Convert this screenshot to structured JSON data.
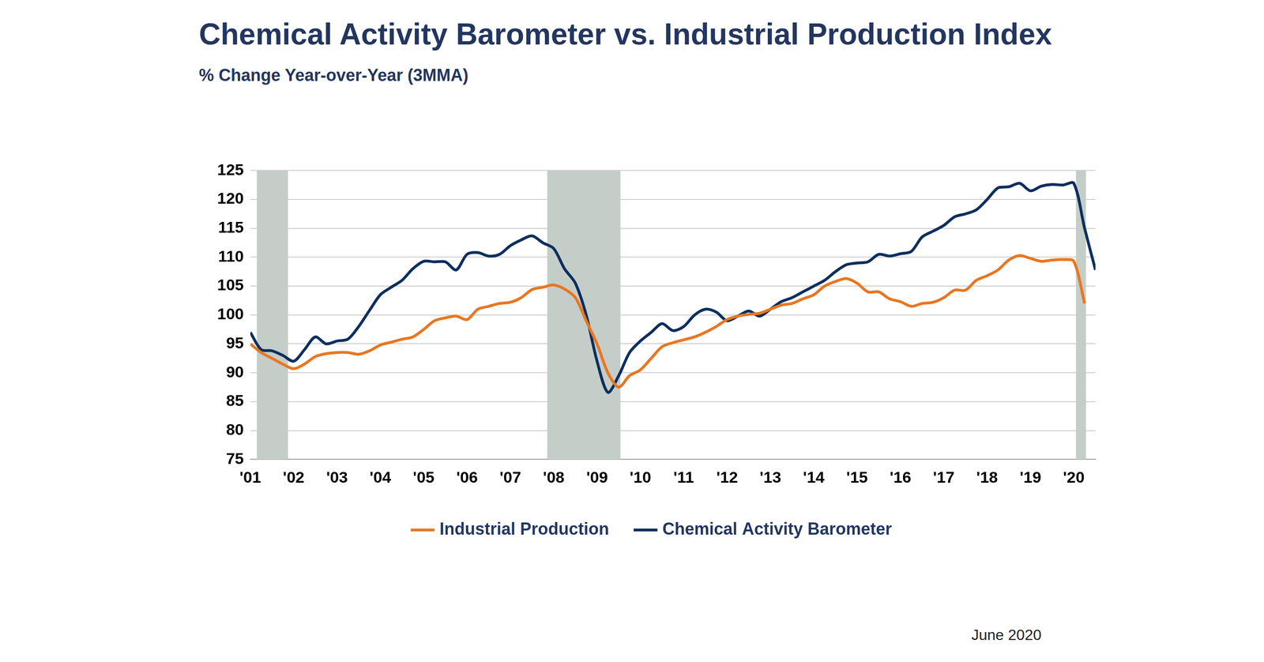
{
  "chart_data": {
    "type": "line",
    "title": "Chemical Activity Barometer vs. Industrial Production Index",
    "subtitle": "% Change Year-over-Year (3MMA)",
    "annotations": [
      "June 2020"
    ],
    "x": [
      2001,
      2001.25,
      2001.5,
      2001.75,
      2002,
      2002.25,
      2002.5,
      2002.75,
      2003,
      2003.25,
      2003.5,
      2003.75,
      2004,
      2004.25,
      2004.5,
      2004.75,
      2005,
      2005.25,
      2005.5,
      2005.75,
      2006,
      2006.25,
      2006.5,
      2006.75,
      2007,
      2007.25,
      2007.5,
      2007.75,
      2008,
      2008.25,
      2008.5,
      2008.75,
      2009,
      2009.25,
      2009.5,
      2009.75,
      2010,
      2010.25,
      2010.5,
      2010.75,
      2011,
      2011.25,
      2011.5,
      2011.75,
      2012,
      2012.25,
      2012.5,
      2012.75,
      2013,
      2013.25,
      2013.5,
      2013.75,
      2014,
      2014.25,
      2014.5,
      2014.75,
      2015,
      2015.25,
      2015.5,
      2015.75,
      2016,
      2016.25,
      2016.5,
      2016.75,
      2017,
      2017.25,
      2017.5,
      2017.75,
      2018,
      2018.25,
      2018.5,
      2018.75,
      2019,
      2019.25,
      2019.5,
      2019.75,
      2020,
      2020.25,
      2020.5
    ],
    "series": [
      {
        "name": "Industrial Production",
        "color": "#e87722",
        "values": [
          95,
          93.5,
          92.5,
          91.5,
          90.7,
          91.5,
          92.8,
          93.3,
          93.5,
          93.5,
          93.2,
          93.8,
          94.8,
          95.3,
          95.8,
          96.2,
          97.5,
          99,
          99.5,
          99.8,
          99.2,
          101,
          101.5,
          102,
          102.2,
          103,
          104.4,
          104.8,
          105.2,
          104.5,
          103,
          99,
          95,
          90,
          87.5,
          89.5,
          90.5,
          92.5,
          94.5,
          95.2,
          95.7,
          96.2,
          97,
          98,
          99.2,
          99.8,
          100.1,
          100.3,
          101,
          101.7,
          102,
          102.8,
          103.5,
          105,
          105.8,
          106.3,
          105.5,
          104,
          104,
          102.8,
          102.3,
          101.5,
          102,
          102.2,
          103,
          104.3,
          104.3,
          106,
          106.8,
          107.8,
          109.5,
          110.3,
          109.8,
          109.3,
          109.5,
          109.6,
          109.3,
          102,
          null
        ]
      },
      {
        "name": "Chemical Activity Barometer",
        "color": "#0d2f5e",
        "values": [
          97,
          94,
          93.8,
          93,
          92,
          94,
          96.2,
          95,
          95.5,
          95.8,
          98,
          100.8,
          103.5,
          104.8,
          106,
          108,
          109.3,
          109.2,
          109.2,
          107.8,
          110.5,
          110.8,
          110.2,
          110.5,
          112,
          113,
          113.7,
          112.5,
          111.5,
          108,
          105.5,
          100,
          92,
          86.6,
          89.5,
          93.5,
          95.5,
          97,
          98.5,
          97.3,
          98,
          100,
          101,
          100.5,
          99,
          99.8,
          100.7,
          99.8,
          101,
          102.3,
          103,
          104,
          105,
          106,
          107.5,
          108.7,
          109,
          109.2,
          110.5,
          110.2,
          110.6,
          111,
          113.5,
          114.5,
          115.5,
          117,
          117.5,
          118.2,
          120,
          122,
          122.2,
          122.8,
          121.5,
          122.3,
          122.6,
          122.5,
          122.8,
          115,
          107.8
        ]
      }
    ],
    "xlim": [
      2001,
      2020.5
    ],
    "xticks": [
      {
        "value": 2001,
        "label": "'01"
      },
      {
        "value": 2002,
        "label": "'02"
      },
      {
        "value": 2003,
        "label": "'03"
      },
      {
        "value": 2004,
        "label": "'04"
      },
      {
        "value": 2005,
        "label": "'05"
      },
      {
        "value": 2006,
        "label": "'06"
      },
      {
        "value": 2007,
        "label": "'07"
      },
      {
        "value": 2008,
        "label": "'08"
      },
      {
        "value": 2009,
        "label": "'09"
      },
      {
        "value": 2010,
        "label": "'10"
      },
      {
        "value": 2011,
        "label": "'11"
      },
      {
        "value": 2012,
        "label": "'12"
      },
      {
        "value": 2013,
        "label": "'13"
      },
      {
        "value": 2014,
        "label": "'14"
      },
      {
        "value": 2015,
        "label": "'15"
      },
      {
        "value": 2016,
        "label": "'16"
      },
      {
        "value": 2017,
        "label": "'17"
      },
      {
        "value": 2018,
        "label": "'18"
      },
      {
        "value": 2019,
        "label": "'19"
      },
      {
        "value": 2020,
        "label": "'20"
      }
    ],
    "ylim": [
      75,
      125
    ],
    "yticks": [
      75,
      80,
      85,
      90,
      95,
      100,
      105,
      110,
      115,
      120,
      125
    ],
    "shaded_ranges": [
      [
        2001.15,
        2001.87
      ],
      [
        2007.85,
        2009.54
      ],
      [
        2020.05,
        2020.28
      ]
    ],
    "grid": true,
    "legend": "bottom"
  }
}
